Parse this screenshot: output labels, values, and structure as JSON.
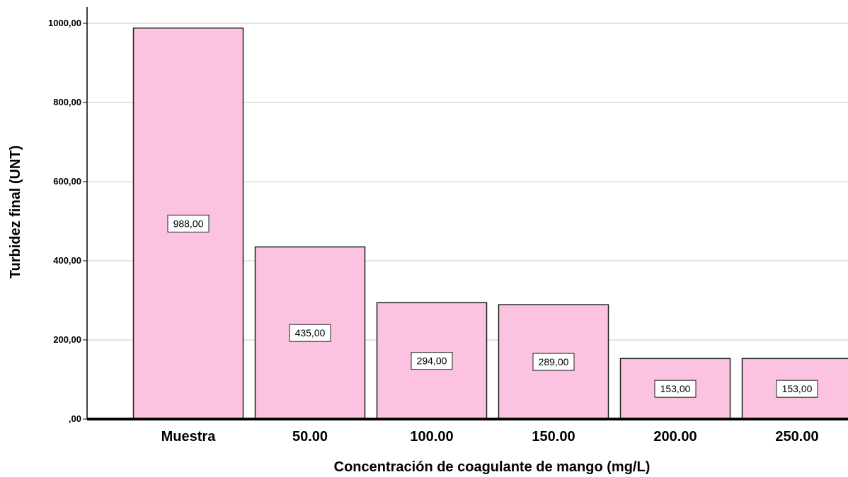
{
  "chart_data": {
    "type": "bar",
    "title": "",
    "xlabel": "Concentración de coagulante de mango (mg/L)",
    "ylabel": "Turbidez final (UNT)",
    "categories": [
      "Muestra",
      "50.00",
      "100.00",
      "150.00",
      "200.00",
      "250.00"
    ],
    "values": [
      988,
      435,
      294,
      289,
      153,
      153
    ],
    "data_labels": [
      "988,00",
      "435,00",
      "294,00",
      "289,00",
      "153,00",
      "153,00"
    ],
    "ylim": [
      0,
      1000
    ],
    "yticks": [
      0,
      200,
      400,
      600,
      800,
      1000
    ],
    "ytick_labels": [
      ",00",
      "200,00",
      "400,00",
      "600,00",
      "800,00",
      "1000,00"
    ],
    "grid": true,
    "legend": "none",
    "colors": {
      "bar_fill": "#fbc3e0",
      "bar_stroke": "#1f1f1f",
      "grid": "#c8c8c8",
      "axis": "#000000"
    }
  }
}
